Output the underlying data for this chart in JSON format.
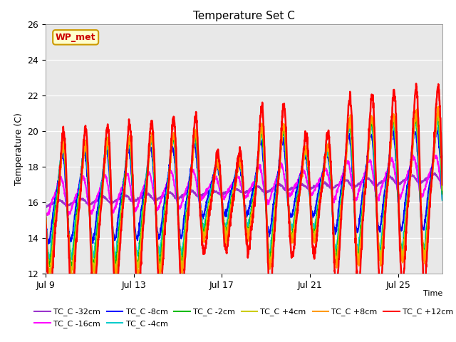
{
  "title": "Temperature Set C",
  "xlabel": "Time",
  "ylabel": "Temperature (C)",
  "xlim": [
    9,
    27
  ],
  "ylim": [
    12,
    26
  ],
  "yticks": [
    12,
    14,
    16,
    18,
    20,
    22,
    24,
    26
  ],
  "xtick_labels": [
    "Jul 9",
    "Jul 13",
    "Jul 17",
    "Jul 21",
    "Jul 25"
  ],
  "xtick_positions": [
    9,
    13,
    17,
    21,
    25
  ],
  "series": [
    {
      "label": "TC_C -32cm",
      "color": "#9933cc"
    },
    {
      "label": "TC_C -16cm",
      "color": "#ff00ff"
    },
    {
      "label": "TC_C -8cm",
      "color": "#0000ff"
    },
    {
      "label": "TC_C -4cm",
      "color": "#00cccc"
    },
    {
      "label": "TC_C -2cm",
      "color": "#00bb00"
    },
    {
      "label": "TC_C +4cm",
      "color": "#cccc00"
    },
    {
      "label": "TC_C +8cm",
      "color": "#ff9900"
    },
    {
      "label": "TC_C +12cm",
      "color": "#ff0000"
    }
  ],
  "watermark_text": "WP_met",
  "watermark_fg": "#cc0000",
  "watermark_bg": "#ffffcc",
  "watermark_border": "#cc9900",
  "fig_bg": "#ffffff",
  "plot_bg": "#e8e8e8",
  "grid_color": "#ffffff"
}
